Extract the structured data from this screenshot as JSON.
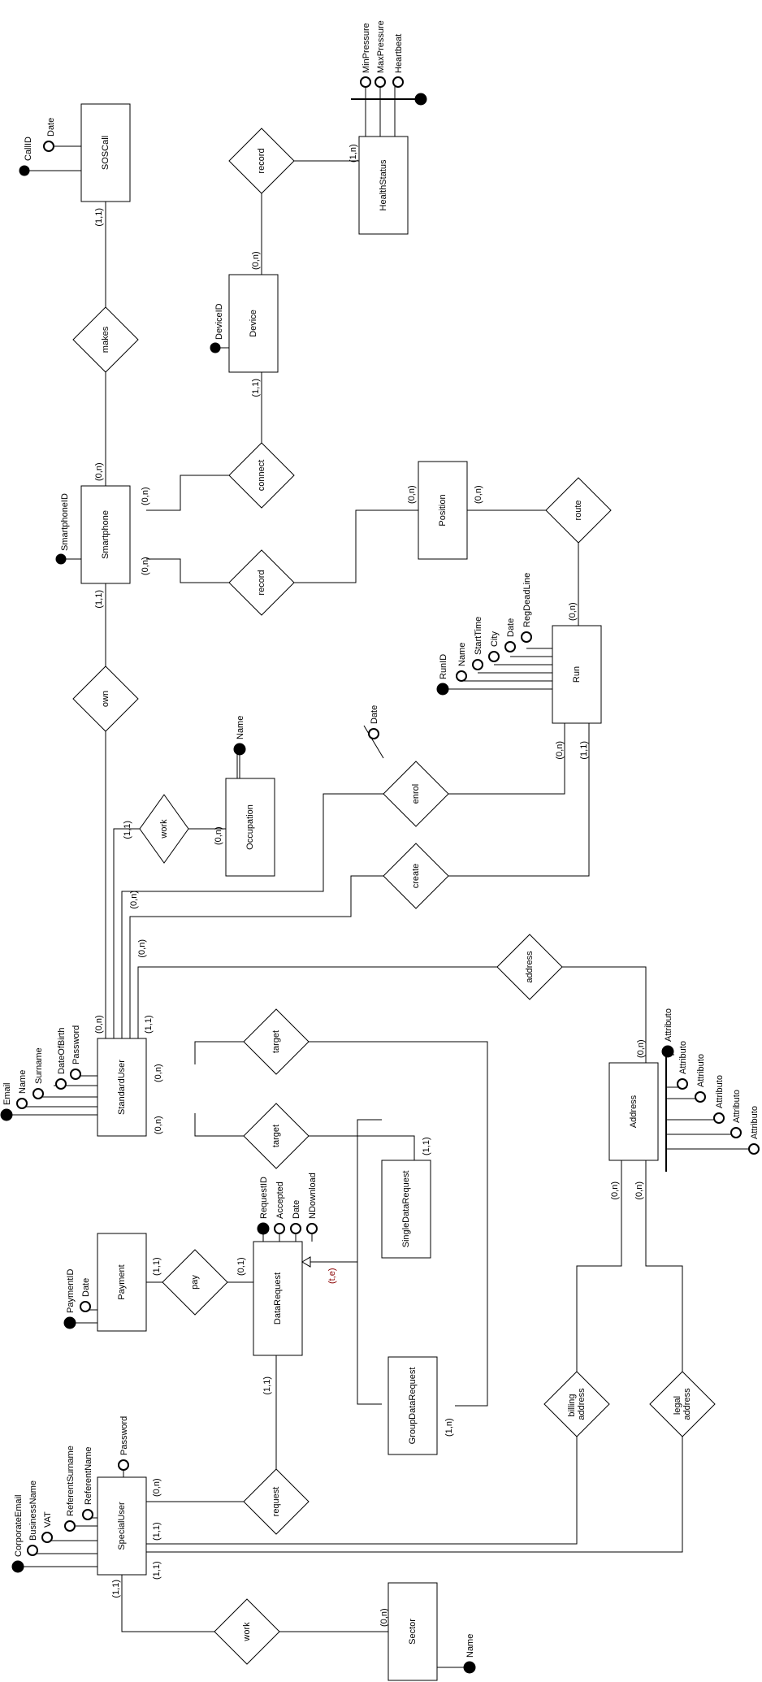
{
  "entities": {
    "soscall": "SOSCall",
    "device": "Device",
    "healthstatus": "HealthStatus",
    "smartphone": "Smartphone",
    "position": "Position",
    "run": "Run",
    "occupation": "Occupation",
    "standarduser": "StandardUser",
    "address": "Address",
    "singledatarequest": "SingleDataRequest",
    "datarequest": "DataRequest",
    "payment": "Payment",
    "groupdatarequest": "GroupDataRequest",
    "specialuser": "SpecialUser",
    "sector": "Sector"
  },
  "relationships": {
    "record_health": "record",
    "makes": "makes",
    "connect": "connect",
    "record_position": "record",
    "route": "route",
    "own": "own",
    "work_occupation": "work",
    "enrol": "enrol",
    "create": "create",
    "address": "address",
    "target_group": "target",
    "target_single": "target",
    "pay": "pay",
    "request": "request",
    "billing_address": [
      "billing",
      "address"
    ],
    "legal_address": [
      "legal",
      "address"
    ],
    "work_sector": "work"
  },
  "attributes": {
    "soscall": [
      "CallID",
      "Date"
    ],
    "healthstatus": [
      "MinPressure",
      "MaxPressure",
      "Heartbeat"
    ],
    "device": [
      "DeviceID"
    ],
    "smartphone": [
      "SmartphoneID"
    ],
    "occupation": [
      "Name"
    ],
    "run": [
      "RunID",
      "Name",
      "StartTime",
      "City",
      "Date",
      "RegDeadLine"
    ],
    "enrol": [
      "Date"
    ],
    "standarduser": [
      "Email",
      "Name",
      "Surname",
      "DateOfBirth",
      "Password"
    ],
    "address": [
      "Attributo",
      "Attributo",
      "Attributo",
      "Attributo",
      "Attributo",
      "Attributo"
    ],
    "datarequest": [
      "RequestID",
      "Accepted",
      "Date",
      "NDownload"
    ],
    "payment": [
      "PaymentID",
      "Date"
    ],
    "specialuser": [
      "CorporateEmail",
      "BusinessName",
      "VAT",
      "ReferentSurname",
      "ReferentName",
      "Password"
    ],
    "sector": [
      "Name"
    ]
  },
  "cardinalities": {
    "soscall_makes": "(1,1)",
    "smartphone_makes": "(0,n)",
    "device_record": "(0,n)",
    "healthstatus_record": "(1,n)",
    "device_connect": "(1,1)",
    "smartphone_connect": "(0,n)",
    "smartphone_record": "(0,n)",
    "position_record": "(0,n)",
    "position_route": "(0,n)",
    "run_route": "(0,n)",
    "smartphone_own": "(1,1)",
    "standarduser_own": "(0,n)",
    "occupation_work": "(0,n)",
    "standarduser_work": "(1,1)",
    "standarduser_enrol": "(0,n)",
    "run_enrol": "(0,n)",
    "standarduser_create": "(0,n)",
    "run_create": "(1,1)",
    "standarduser_address": "(1,1)",
    "address_address": "(0,n)",
    "standarduser_target1": "(0,n)",
    "standarduser_target2": "(0,n)",
    "singledatarequest_target": "(1,1)",
    "groupdatarequest_target": "(1,n)",
    "generalization": "(t,e)",
    "payment_pay": "(1,1)",
    "datarequest_pay": "(0,1)",
    "datarequest_request": "(1,1)",
    "specialuser_request": "(0,n)",
    "address_billing": "(0,n)",
    "address_legal": "(0,n)",
    "specialuser_billing": "(1,1)",
    "specialuser_legal": "(1,1)",
    "specialuser_work": "(1,1)",
    "sector_work": "(0,n)"
  }
}
